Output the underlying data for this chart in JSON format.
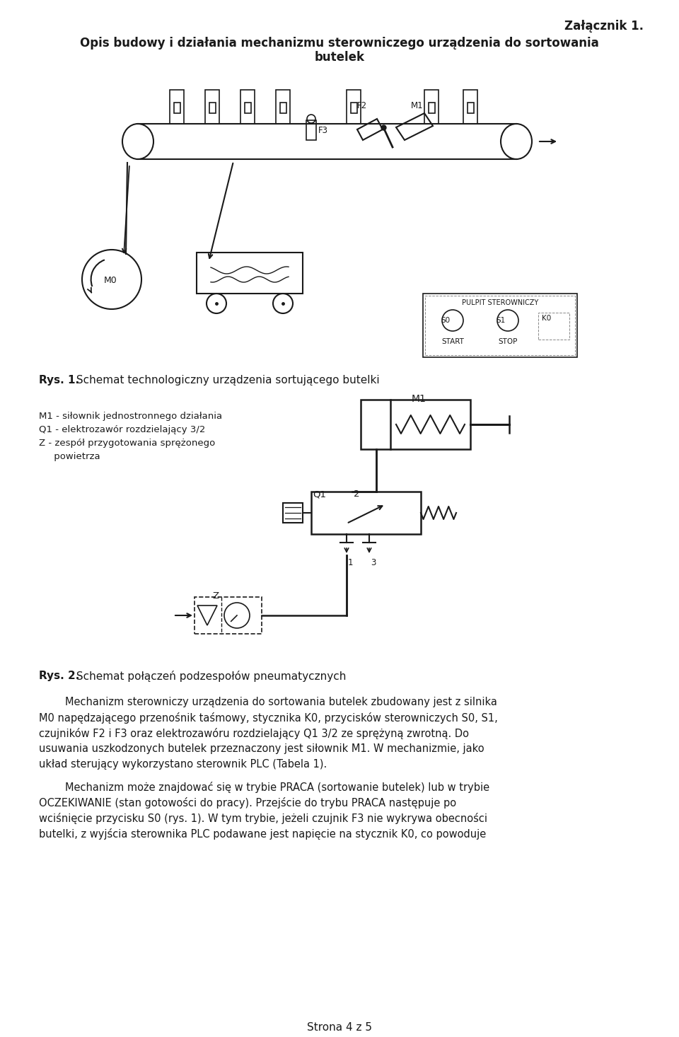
{
  "title_right": "Załącznik 1.",
  "main_title_line1": "Opis budowy i działania mechanizmu sterowniczego urządzenia do sortowania",
  "main_title_line2": "butelek",
  "fig1_caption_bold": "Rys. 1.",
  "fig1_caption": " Schemat technologiczny urządzenia sortującego butelki",
  "fig2_caption_bold": "Rys. 2.",
  "fig2_caption": " Schemat połączeń podzespołów pneumatycznych",
  "legend_lines": [
    "M1 - siłownik jednostronnego działania",
    "Q1 - elektrozawór rozdzielający 3/2",
    "Z - zespół przygotowania sprężonego",
    "     powietrza"
  ],
  "p1_lines": [
    "        Mechanizm sterowniczy urządzenia do sortowania butelek zbudowany jest z silnika",
    "M0 napędzającego przenośnik taśmowy, stycznika K0, przycisków sterowniczych S0, S1,",
    "czujników F2 i F3 oraz elektrozawóru rozdzielający Q1 3/2 ze sprężyną zwrotną. Do",
    "usuwania uszkodzonych butelek przeznaczony jest siłownik M1. W mechanizmie, jako",
    "układ sterujący wykorzystano sterownik PLC (Tabela 1)."
  ],
  "p2_lines": [
    "        Mechanizm może znajdować się w trybie PRACA (sortowanie butelek) lub w trybie",
    "OCZEKIWANIE (stan gotowości do pracy). Przejście do trybu PRACA następuje po",
    "wciśnięcie przycisku S0 (rys. 1). W tym trybie, jeżeli czujnik F3 nie wykrywa obecności",
    "butelki, z wyjścia sterownika PLC podawane jest napięcie na stycznik K0, co powoduje"
  ],
  "page_footer": "Strona 4 z 5",
  "bg_color": "#ffffff",
  "line_color": "#1a1a1a",
  "text_color": "#1a1a1a"
}
